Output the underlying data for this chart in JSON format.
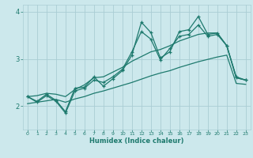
{
  "xlabel": "Humidex (Indice chaleur)",
  "bg_color": "#cce8ec",
  "grid_color": "#aacdd4",
  "line_color": "#1e7a6e",
  "xlim": [
    -0.5,
    23.5
  ],
  "ylim": [
    1.5,
    4.15
  ],
  "yticks": [
    2,
    3,
    4
  ],
  "xticks": [
    0,
    1,
    2,
    3,
    4,
    5,
    6,
    7,
    8,
    9,
    10,
    11,
    12,
    13,
    14,
    15,
    16,
    17,
    18,
    19,
    20,
    21,
    22,
    23
  ],
  "x_data": [
    0,
    1,
    2,
    3,
    4,
    5,
    6,
    7,
    8,
    9,
    10,
    11,
    12,
    13,
    14,
    15,
    16,
    17,
    18,
    19,
    20,
    21,
    22,
    23
  ],
  "wiggly1_y": [
    2.2,
    2.1,
    2.25,
    2.12,
    1.88,
    2.38,
    2.4,
    2.62,
    2.42,
    2.58,
    2.75,
    3.08,
    3.78,
    3.56,
    3.02,
    3.15,
    3.58,
    3.62,
    3.9,
    3.52,
    3.55,
    3.28,
    2.62,
    2.55
  ],
  "wiggly2_y": [
    2.2,
    2.08,
    2.22,
    2.1,
    1.85,
    2.32,
    2.38,
    2.55,
    2.5,
    2.62,
    2.78,
    3.15,
    3.58,
    3.42,
    2.98,
    3.22,
    3.48,
    3.52,
    3.72,
    3.48,
    3.52,
    3.28,
    2.6,
    2.55
  ],
  "smooth_upper_y": [
    2.2,
    2.22,
    2.27,
    2.25,
    2.2,
    2.35,
    2.45,
    2.6,
    2.62,
    2.72,
    2.82,
    2.95,
    3.05,
    3.15,
    3.2,
    3.28,
    3.38,
    3.45,
    3.52,
    3.55,
    3.55,
    3.28,
    2.6,
    2.55
  ],
  "smooth_lower_y": [
    2.05,
    2.08,
    2.11,
    2.14,
    2.08,
    2.15,
    2.2,
    2.27,
    2.32,
    2.38,
    2.44,
    2.5,
    2.57,
    2.64,
    2.7,
    2.75,
    2.82,
    2.88,
    2.94,
    2.99,
    3.04,
    3.08,
    2.48,
    2.46
  ]
}
